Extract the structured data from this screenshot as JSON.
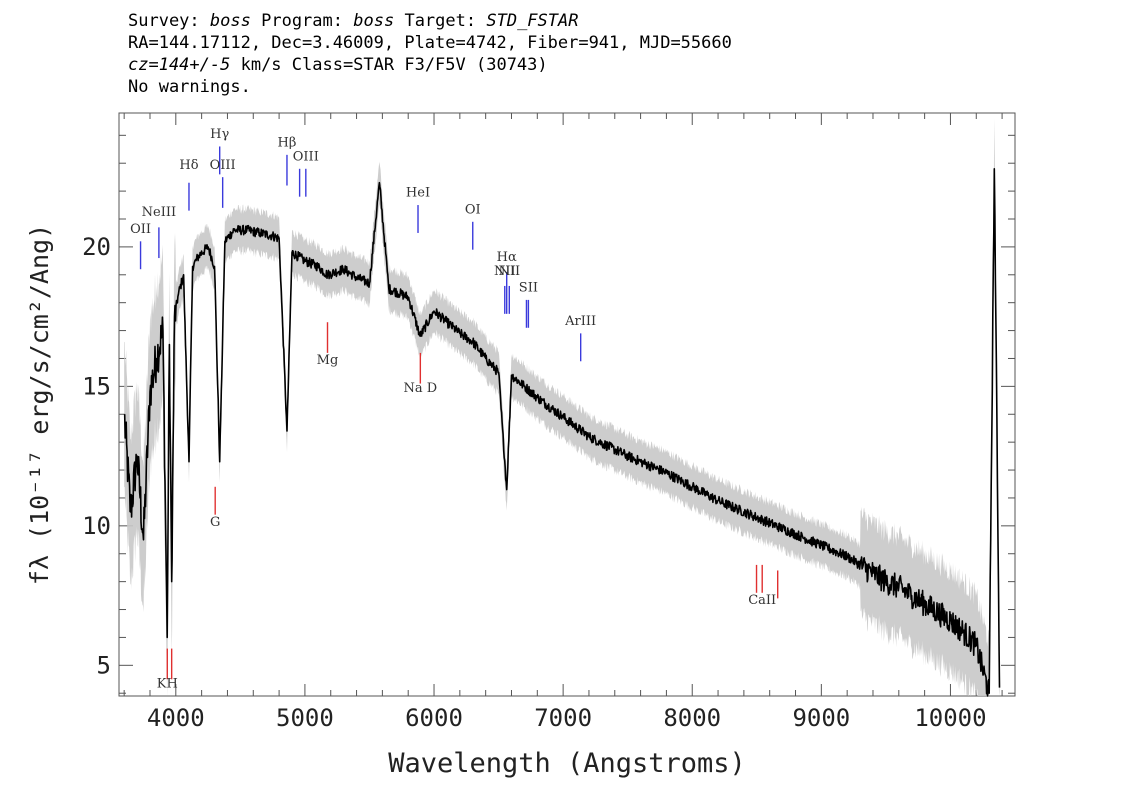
{
  "header": {
    "line1": {
      "survey_label": "Survey:",
      "survey": "boss",
      "program_label": "Program:",
      "program": "boss",
      "target_label": "Target:",
      "target": "STD_FSTAR"
    },
    "line2": "RA=144.17112, Dec=3.46009, Plate=4742, Fiber=941, MJD=55660",
    "line3": {
      "cz": "cz=144+/-5",
      "rest": " km/s Class=STAR F3/F5V (30743)"
    },
    "line4": "No warnings."
  },
  "chart_data": {
    "type": "line",
    "xlabel": "Wavelength (Angstroms)",
    "ylabel": "fλ (10⁻¹⁷ erg/s/cm²/Ang)",
    "xlim": [
      3560,
      10500
    ],
    "ylim": [
      3.9,
      24.8
    ],
    "x_ticks": [
      4000,
      5000,
      6000,
      7000,
      8000,
      9000,
      10000
    ],
    "y_ticks": [
      5,
      10,
      15,
      20
    ],
    "colors": {
      "spectrum": "#000000",
      "error_band": "#c8c8c8",
      "emission": "#3a3adc",
      "absorption": "#e03030"
    },
    "spectrum": {
      "x": [
        3600,
        3650,
        3700,
        3750,
        3800,
        3850,
        3900,
        3933,
        3950,
        3968,
        3990,
        4020,
        4060,
        4102,
        4130,
        4180,
        4250,
        4300,
        4340,
        4380,
        4450,
        4550,
        4650,
        4750,
        4800,
        4861,
        4900,
        5000,
        5100,
        5175,
        5300,
        5400,
        5500,
        5577,
        5650,
        5800,
        5893,
        6000,
        6100,
        6200,
        6300,
        6400,
        6500,
        6563,
        6600,
        6700,
        6800,
        7000,
        7200,
        7500,
        7800,
        8000,
        8200,
        8400,
        8600,
        8800,
        9000,
        9200,
        9300,
        9400,
        9500,
        9600,
        9700,
        9800,
        9900,
        10000,
        10100,
        10200,
        10300,
        10340,
        10380
      ],
      "y": [
        14.0,
        10.5,
        12.5,
        9.5,
        14.8,
        16.0,
        17.0,
        6.0,
        16.5,
        8.0,
        17.5,
        18.3,
        19.0,
        12.3,
        19.3,
        19.7,
        20.0,
        19.3,
        12.3,
        20.2,
        20.6,
        20.6,
        20.5,
        20.4,
        20.3,
        13.4,
        19.8,
        19.5,
        19.3,
        19.0,
        19.2,
        18.9,
        18.7,
        22.3,
        18.5,
        18.2,
        16.8,
        17.7,
        17.3,
        16.9,
        16.6,
        16.0,
        15.5,
        11.3,
        15.4,
        15.0,
        14.6,
        13.9,
        13.2,
        12.5,
        11.9,
        11.4,
        10.9,
        10.5,
        10.1,
        9.7,
        9.3,
        8.9,
        8.6,
        8.3,
        8.0,
        7.8,
        7.5,
        7.2,
        6.9,
        6.6,
        6.2,
        5.7,
        4.0,
        22.8,
        4.2
      ]
    },
    "emission_lines": [
      {
        "label": "OII",
        "wavelength": 3727
      },
      {
        "label": "NeIII",
        "wavelength": 3869
      },
      {
        "label": "Hδ",
        "wavelength": 4102
      },
      {
        "label": "Hγ",
        "wavelength": 4340
      },
      {
        "label": "OIII",
        "wavelength": 4363
      },
      {
        "label": "Hβ",
        "wavelength": 4861
      },
      {
        "label": "OIII",
        "wavelength": 4985
      },
      {
        "label": "HeI",
        "wavelength": 5876
      },
      {
        "label": "OI",
        "wavelength": 6300
      },
      {
        "label": "NII",
        "wavelength": 6560
      },
      {
        "label": "Hα",
        "wavelength": 6577
      },
      {
        "label": "NII",
        "wavelength": 6590
      },
      {
        "label": "SII",
        "wavelength": 6731
      },
      {
        "label": "ArIII",
        "wavelength": 7136
      }
    ],
    "absorption_lines": [
      {
        "label": "KH",
        "wavelength": 3951
      },
      {
        "label": "G",
        "wavelength": 4305
      },
      {
        "label": "Mg",
        "wavelength": 5175
      },
      {
        "label": "Na D",
        "wavelength": 5894
      },
      {
        "label": "CaII",
        "wavelength": 8599
      }
    ],
    "emission_marks": [
      {
        "wavelength": 3727,
        "y1": 19.2,
        "y2": 20.2,
        "label_y": 20.5
      },
      {
        "wavelength": 3869,
        "y1": 19.6,
        "y2": 20.7,
        "label_y": 21.1
      },
      {
        "wavelength": 4102,
        "y1": 21.3,
        "y2": 22.3,
        "label_y": 22.8
      },
      {
        "wavelength": 4340,
        "y1": 22.6,
        "y2": 23.6,
        "label_y": 23.9
      },
      {
        "wavelength": 4363,
        "y1": 21.4,
        "y2": 22.5,
        "label_y": 22.8
      },
      {
        "wavelength": 4861,
        "y1": 22.2,
        "y2": 23.3,
        "label_y": 23.6
      },
      {
        "wavelength": 4959,
        "y1": 21.8,
        "y2": 22.8,
        "label_y": null
      },
      {
        "wavelength": 5007,
        "y1": 21.8,
        "y2": 22.8,
        "label_y": 23.1
      },
      {
        "wavelength": 5876,
        "y1": 20.5,
        "y2": 21.5,
        "label_y": 21.8
      },
      {
        "wavelength": 6300,
        "y1": 19.9,
        "y2": 20.9,
        "label_y": 21.2
      },
      {
        "wavelength": 6548,
        "y1": 17.6,
        "y2": 18.6,
        "label_y": 19.0
      },
      {
        "wavelength": 6563,
        "y1": 17.6,
        "y2": 19.1,
        "label_y": 19.5
      },
      {
        "wavelength": 6583,
        "y1": 17.6,
        "y2": 18.6,
        "label_y": 19.0
      },
      {
        "wavelength": 6716,
        "y1": 17.1,
        "y2": 18.1,
        "label_y": null
      },
      {
        "wavelength": 6731,
        "y1": 17.1,
        "y2": 18.1,
        "label_y": 18.4
      },
      {
        "wavelength": 7136,
        "y1": 15.9,
        "y2": 16.9,
        "label_y": 17.2
      }
    ],
    "absorption_marks": [
      {
        "wavelength": 3934,
        "y1": 4.5,
        "y2": 5.6,
        "label_y": 4.2
      },
      {
        "wavelength": 3968,
        "y1": 4.5,
        "y2": 5.6,
        "label_y": null
      },
      {
        "wavelength": 4305,
        "y1": 10.4,
        "y2": 11.4,
        "label_y": 10.0
      },
      {
        "wavelength": 5175,
        "y1": 16.2,
        "y2": 17.3,
        "label_y": 15.8
      },
      {
        "wavelength": 5894,
        "y1": 15.1,
        "y2": 16.2,
        "label_y": 14.8
      },
      {
        "wavelength": 8498,
        "y1": 7.6,
        "y2": 8.6,
        "label_y": null
      },
      {
        "wavelength": 8542,
        "y1": 7.6,
        "y2": 8.6,
        "label_y": 7.2
      },
      {
        "wavelength": 8662,
        "y1": 7.4,
        "y2": 8.4,
        "label_y": null
      }
    ]
  }
}
